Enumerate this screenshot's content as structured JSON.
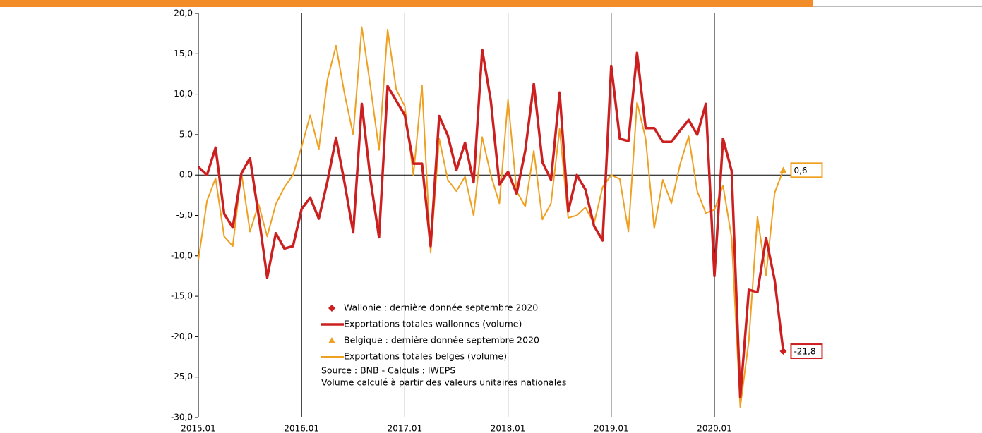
{
  "chart_data": {
    "type": "line",
    "categories": [
      "2015.01",
      null,
      null,
      null,
      null,
      null,
      null,
      null,
      null,
      null,
      null,
      null,
      "2016.01",
      null,
      null,
      null,
      null,
      null,
      null,
      null,
      null,
      null,
      null,
      null,
      "2017.01",
      null,
      null,
      null,
      null,
      null,
      null,
      null,
      null,
      null,
      null,
      null,
      "2018.01",
      null,
      null,
      null,
      null,
      null,
      null,
      null,
      null,
      null,
      null,
      null,
      "2019.01",
      null,
      null,
      null,
      null,
      null,
      null,
      null,
      null,
      null,
      null,
      null,
      "2020.01",
      null,
      null,
      null,
      null,
      null,
      null,
      null,
      null
    ],
    "ylim": [
      -30,
      20
    ],
    "yticks": [
      {
        "value": -30,
        "label": "-30,0"
      },
      {
        "value": -25,
        "label": "-25,0"
      },
      {
        "value": -20,
        "label": "-20,0"
      },
      {
        "value": -15,
        "label": "-15,0"
      },
      {
        "value": -10,
        "label": "-10,0"
      },
      {
        "value": -5,
        "label": "-5,0"
      },
      {
        "value": 0,
        "label": "0,0"
      },
      {
        "value": 5,
        "label": "5,0"
      },
      {
        "value": 10,
        "label": "10,0"
      },
      {
        "value": 15,
        "label": "15,0"
      },
      {
        "value": 20,
        "label": "20,0"
      }
    ],
    "year_lines": true,
    "series": [
      {
        "name": "Exportations totales wallonnes (volume)",
        "color": "#cc1f1f",
        "width": 3.5,
        "marker": "diamond",
        "marker_legend": "Wallonie : dernière donnée septembre 2020",
        "values": [
          1.0,
          0.0,
          3.4,
          -4.8,
          -6.5,
          0.2,
          2.1,
          -5.0,
          -12.7,
          -7.2,
          -9.1,
          -8.8,
          -4.2,
          -2.8,
          -5.4,
          -0.8,
          4.6,
          -1.0,
          -7.1,
          8.8,
          -0.5,
          -7.7,
          11.0,
          9.2,
          7.4,
          1.4,
          1.4,
          -8.8,
          7.3,
          4.9,
          0.6,
          4.0,
          -0.9,
          15.5,
          9.2,
          -1.2,
          0.4,
          -2.3,
          3.0,
          11.3,
          1.6,
          -0.6,
          10.2,
          -4.5,
          0.0,
          -1.8,
          -6.3,
          -8.1,
          13.5,
          4.5,
          4.2,
          15.1,
          5.8,
          5.8,
          4.1,
          4.1,
          5.5,
          6.8,
          5.0,
          8.8,
          -12.5,
          4.5,
          0.5,
          -27.5,
          -14.2,
          -14.5,
          -7.8,
          -13.0,
          -21.8
        ],
        "value_labels": [
          null,
          null,
          null,
          null,
          null,
          null,
          null,
          null,
          null,
          null,
          null,
          null,
          null,
          null,
          null,
          null,
          null,
          null,
          null,
          null,
          null,
          null,
          null,
          null,
          null,
          null,
          null,
          null,
          null,
          null,
          null,
          null,
          null,
          null,
          null,
          null,
          null,
          null,
          null,
          null,
          null,
          null,
          null,
          null,
          null,
          null,
          null,
          null,
          null,
          null,
          null,
          null,
          null,
          null,
          null,
          null,
          null,
          null,
          null,
          null,
          null,
          null,
          null,
          null,
          null,
          null,
          null,
          null,
          "-21,8"
        ]
      },
      {
        "name": "Exportations totales belges (volume)",
        "color": "#f0a020",
        "width": 2,
        "marker": "triangle",
        "marker_legend": "Belgique : dernière donnée septembre 2020",
        "values": [
          -10.5,
          -3.2,
          -0.4,
          -7.6,
          -8.8,
          0.3,
          -7.0,
          -3.6,
          -7.6,
          -3.6,
          -1.5,
          0.0,
          3.5,
          7.4,
          3.2,
          11.8,
          16.0,
          10.0,
          5.0,
          18.3,
          11.0,
          3.1,
          18.0,
          10.6,
          8.5,
          0.0,
          11.1,
          -9.6,
          4.5,
          -0.6,
          -2.0,
          -0.2,
          -5.0,
          4.7,
          0.0,
          -3.5,
          9.3,
          -2.0,
          -3.9,
          3.0,
          -5.5,
          -3.5,
          5.7,
          -5.3,
          -5.0,
          -4.0,
          -6.0,
          -1.5,
          0.0,
          -0.5,
          -7.0,
          9.0,
          4.5,
          -6.6,
          -0.6,
          -3.5,
          1.3,
          4.8,
          -2.0,
          -4.7,
          -4.3,
          -1.3,
          -7.8,
          -28.7,
          -20.5,
          -5.2,
          -12.4,
          -2.2,
          0.6
        ],
        "value_labels": [
          null,
          null,
          null,
          null,
          null,
          null,
          null,
          null,
          null,
          null,
          null,
          null,
          null,
          null,
          null,
          null,
          null,
          null,
          null,
          null,
          null,
          null,
          null,
          null,
          null,
          null,
          null,
          null,
          null,
          null,
          null,
          null,
          null,
          null,
          null,
          null,
          null,
          null,
          null,
          null,
          null,
          null,
          null,
          null,
          null,
          null,
          null,
          null,
          null,
          null,
          null,
          null,
          null,
          null,
          null,
          null,
          null,
          null,
          null,
          null,
          null,
          null,
          null,
          null,
          null,
          null,
          null,
          null,
          "0,6"
        ]
      }
    ],
    "notes": [
      "Source : BNB - Calculs : IWEPS",
      "Volume calculé à partir des valeurs unitaires nationales"
    ]
  }
}
